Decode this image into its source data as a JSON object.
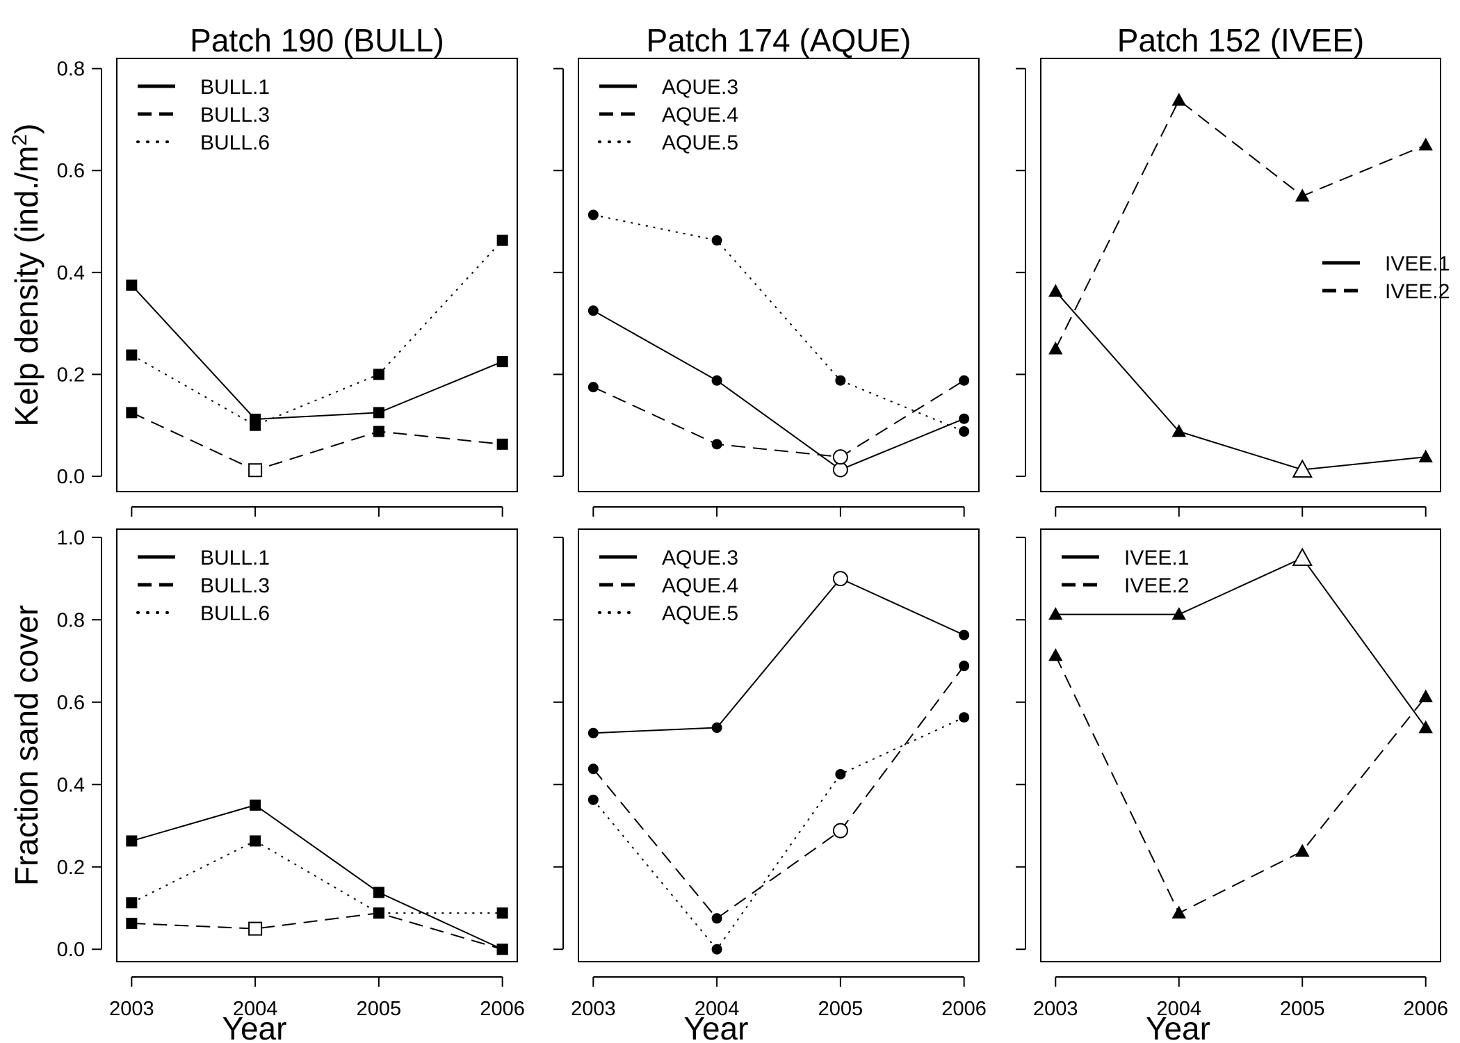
{
  "chart_data": [
    {
      "type": "line",
      "panel": "top-left",
      "title": "Patch 190 (BULL)",
      "ylabel": "Kelp density (ind./m²)",
      "ylabel_main": "Kelp density (ind./m",
      "ylabel_sup": "2",
      "ylabel_close": ")",
      "xlabel": "",
      "x": [
        2003,
        2004,
        2005,
        2006
      ],
      "xlim": [
        2002.88,
        2006.12
      ],
      "ylim": [
        -0.03,
        0.82
      ],
      "yticks": [
        0.0,
        0.2,
        0.4,
        0.6,
        0.8
      ],
      "ytick_labels": [
        "0.0",
        "0.2",
        "0.4",
        "0.6",
        "0.8"
      ],
      "xtick_labels": [
        "",
        "",
        "",
        ""
      ],
      "marker": "square",
      "legend_position": "top-left",
      "series": [
        {
          "name": "BULL.1",
          "style": "solid",
          "values": [
            0.375,
            0.112,
            0.125,
            0.225
          ],
          "open": [
            false,
            false,
            false,
            false
          ]
        },
        {
          "name": "BULL.3",
          "style": "dashed",
          "values": [
            0.125,
            0.012,
            0.088,
            0.063
          ],
          "open": [
            false,
            true,
            false,
            false
          ]
        },
        {
          "name": "BULL.6",
          "style": "dotted",
          "values": [
            0.238,
            0.1,
            0.2,
            0.463
          ],
          "open": [
            false,
            false,
            false,
            false
          ]
        }
      ]
    },
    {
      "type": "line",
      "panel": "top-middle",
      "title": "Patch 174 (AQUE)",
      "xlabel": "",
      "x": [
        2003,
        2004,
        2005,
        2006
      ],
      "xlim": [
        2002.88,
        2006.12
      ],
      "ylim": [
        -0.03,
        0.82
      ],
      "yticks": [
        0.0,
        0.2,
        0.4,
        0.6,
        0.8
      ],
      "ytick_labels": [
        "",
        "",
        "",
        "",
        ""
      ],
      "xtick_labels": [
        "",
        "",
        "",
        ""
      ],
      "marker": "circle",
      "legend_position": "top-left",
      "series": [
        {
          "name": "AQUE.3",
          "style": "solid",
          "values": [
            0.325,
            0.188,
            0.013,
            0.113
          ],
          "open": [
            false,
            false,
            true,
            false
          ]
        },
        {
          "name": "AQUE.4",
          "style": "dashed",
          "values": [
            0.175,
            0.063,
            0.038,
            0.188
          ],
          "open": [
            false,
            false,
            true,
            false
          ]
        },
        {
          "name": "AQUE.5",
          "style": "dotted",
          "values": [
            0.513,
            0.463,
            0.188,
            0.088
          ],
          "open": [
            false,
            false,
            false,
            false
          ]
        }
      ]
    },
    {
      "type": "line",
      "panel": "top-right",
      "title": "Patch 152 (IVEE)",
      "xlabel": "",
      "x": [
        2003,
        2004,
        2005,
        2006
      ],
      "xlim": [
        2002.88,
        2006.12
      ],
      "ylim": [
        -0.03,
        0.82
      ],
      "yticks": [
        0.0,
        0.2,
        0.4,
        0.6,
        0.8
      ],
      "ytick_labels": [
        "",
        "",
        "",
        "",
        ""
      ],
      "xtick_labels": [
        "",
        "",
        "",
        ""
      ],
      "marker": "triangle",
      "legend_position": "middle-right",
      "series": [
        {
          "name": "IVEE.1",
          "style": "solid",
          "values": [
            0.363,
            0.088,
            0.013,
            0.038
          ],
          "open": [
            false,
            false,
            true,
            false
          ]
        },
        {
          "name": "IVEE.2",
          "style": "dashed",
          "values": [
            0.25,
            0.738,
            0.55,
            0.65
          ],
          "open": [
            false,
            false,
            false,
            false
          ]
        }
      ]
    },
    {
      "type": "line",
      "panel": "bottom-left",
      "title": "",
      "ylabel": "Fraction sand cover",
      "xlabel": "Year",
      "x": [
        2003,
        2004,
        2005,
        2006
      ],
      "xlim": [
        2002.88,
        2006.12
      ],
      "ylim": [
        -0.03,
        1.02
      ],
      "yticks": [
        0.0,
        0.2,
        0.4,
        0.6,
        0.8,
        1.0
      ],
      "ytick_labels": [
        "0.0",
        "0.2",
        "0.4",
        "0.6",
        "0.8",
        "1.0"
      ],
      "xtick_labels": [
        "2003",
        "2004",
        "2005",
        "2006"
      ],
      "marker": "square",
      "legend_position": "top-left",
      "series": [
        {
          "name": "BULL.1",
          "style": "solid",
          "values": [
            0.263,
            0.35,
            0.138,
            0.0
          ],
          "open": [
            false,
            false,
            false,
            false
          ]
        },
        {
          "name": "BULL.3",
          "style": "dashed",
          "values": [
            0.063,
            0.05,
            0.088,
            0.0
          ],
          "open": [
            false,
            true,
            false,
            false
          ]
        },
        {
          "name": "BULL.6",
          "style": "dotted",
          "values": [
            0.113,
            0.263,
            0.088,
            0.088
          ],
          "open": [
            false,
            false,
            false,
            false
          ]
        }
      ]
    },
    {
      "type": "line",
      "panel": "bottom-middle",
      "title": "",
      "xlabel": "Year",
      "x": [
        2003,
        2004,
        2005,
        2006
      ],
      "xlim": [
        2002.88,
        2006.12
      ],
      "ylim": [
        -0.03,
        1.02
      ],
      "yticks": [
        0.0,
        0.2,
        0.4,
        0.6,
        0.8,
        1.0
      ],
      "ytick_labels": [
        "",
        "",
        "",
        "",
        "",
        ""
      ],
      "xtick_labels": [
        "2003",
        "2004",
        "2005",
        "2006"
      ],
      "marker": "circle",
      "legend_position": "top-left",
      "series": [
        {
          "name": "AQUE.3",
          "style": "solid",
          "values": [
            0.525,
            0.538,
            0.9,
            0.763
          ],
          "open": [
            false,
            false,
            true,
            false
          ]
        },
        {
          "name": "AQUE.4",
          "style": "dashed",
          "values": [
            0.438,
            0.075,
            0.288,
            0.688
          ],
          "open": [
            false,
            false,
            true,
            false
          ]
        },
        {
          "name": "AQUE.5",
          "style": "dotted",
          "values": [
            0.363,
            0.0,
            0.425,
            0.563
          ],
          "open": [
            false,
            false,
            false,
            false
          ]
        }
      ]
    },
    {
      "type": "line",
      "panel": "bottom-right",
      "title": "",
      "xlabel": "Year",
      "x": [
        2003,
        2004,
        2005,
        2006
      ],
      "xlim": [
        2002.88,
        2006.12
      ],
      "ylim": [
        -0.03,
        1.02
      ],
      "yticks": [
        0.0,
        0.2,
        0.4,
        0.6,
        0.8,
        1.0
      ],
      "ytick_labels": [
        "",
        "",
        "",
        "",
        "",
        ""
      ],
      "xtick_labels": [
        "2003",
        "2004",
        "2005",
        "2006"
      ],
      "marker": "triangle",
      "legend_position": "top-left",
      "series": [
        {
          "name": "IVEE.1",
          "style": "solid",
          "values": [
            0.813,
            0.813,
            0.95,
            0.538
          ],
          "open": [
            false,
            false,
            true,
            false
          ]
        },
        {
          "name": "IVEE.2",
          "style": "dashed",
          "values": [
            0.713,
            0.088,
            0.238,
            0.613
          ],
          "open": [
            false,
            false,
            false,
            false
          ]
        }
      ]
    }
  ]
}
